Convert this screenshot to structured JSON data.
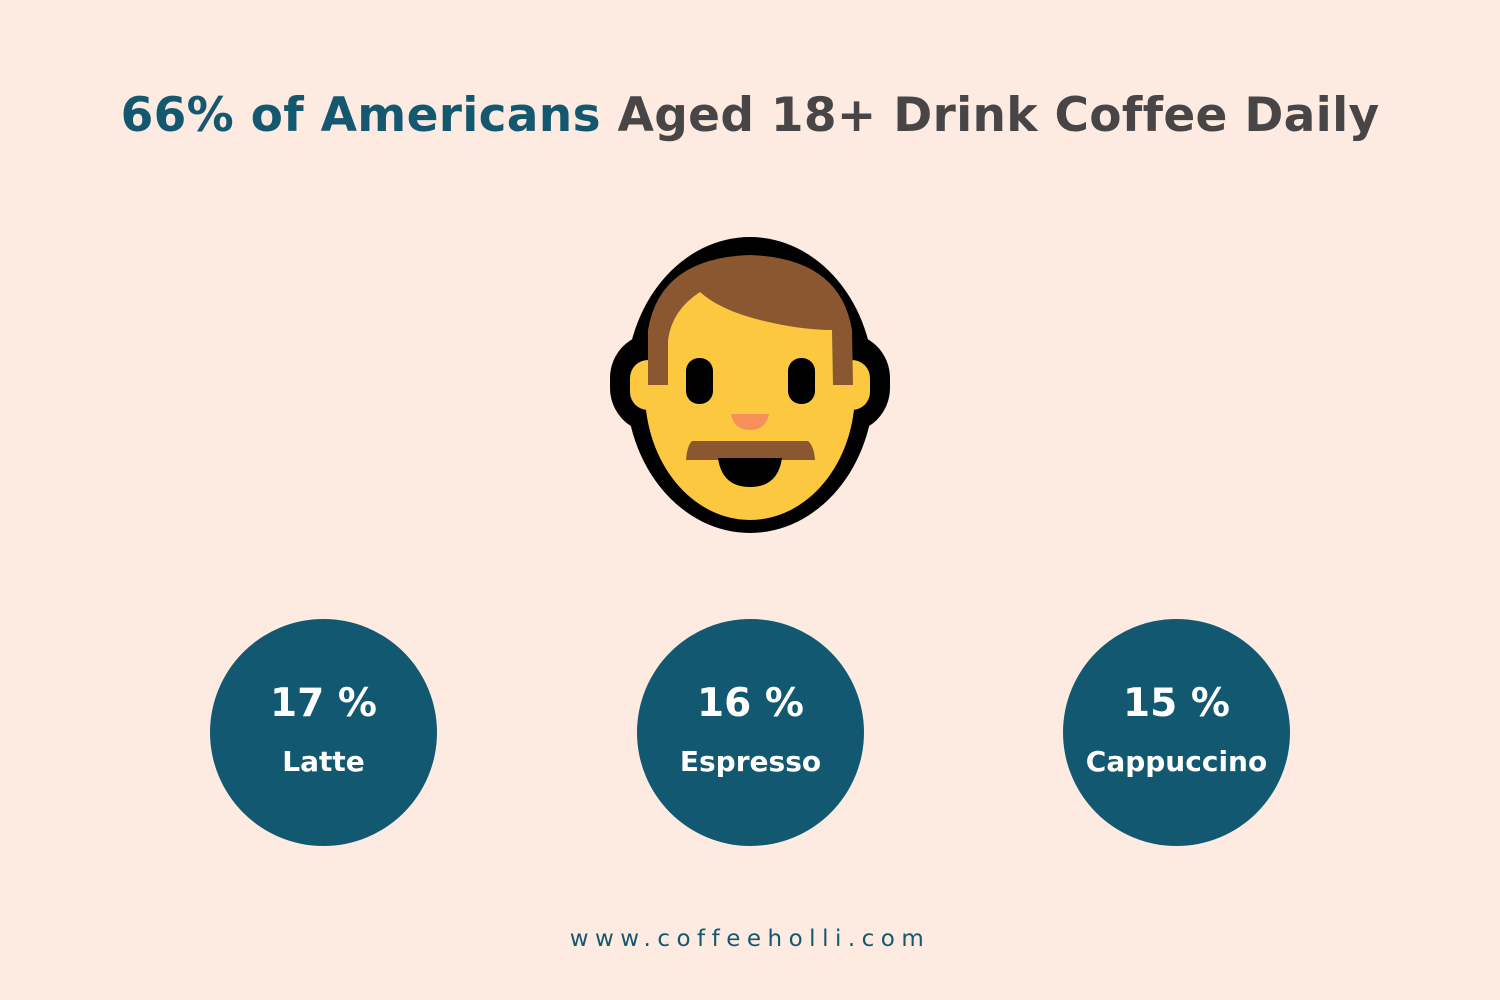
{
  "title": {
    "highlight": "66% of Americans",
    "rest": " Aged 18+ Drink Coffee Daily"
  },
  "icon": "man-face-emoji-icon",
  "colors": {
    "background": "#fdebe2",
    "accent": "#125870",
    "title_text": "#474545"
  },
  "stats": [
    {
      "value": "17 %",
      "label": "Latte"
    },
    {
      "value": "16 %",
      "label": "Espresso"
    },
    {
      "value": "15 %",
      "label": "Cappuccino"
    }
  ],
  "footer": "www.coffeeholli.com"
}
